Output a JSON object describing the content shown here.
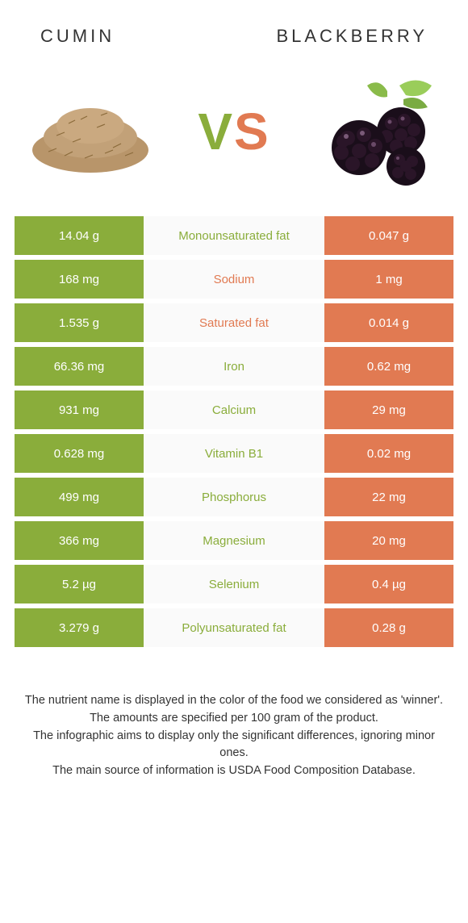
{
  "colors": {
    "left_bg": "#8aad3b",
    "right_bg": "#e17a52",
    "mid_bg": "#fafafa",
    "left_text": "#8aad3b",
    "right_text": "#e17a52"
  },
  "header": {
    "left": "CUMIN",
    "right": "BLACKBERRY"
  },
  "vs": {
    "v": "V",
    "s": "S"
  },
  "rows": [
    {
      "left": "14.04 g",
      "mid": "Monounsaturated fat",
      "right": "0.047 g",
      "winner": "left"
    },
    {
      "left": "168 mg",
      "mid": "Sodium",
      "right": "1 mg",
      "winner": "right"
    },
    {
      "left": "1.535 g",
      "mid": "Saturated fat",
      "right": "0.014 g",
      "winner": "right"
    },
    {
      "left": "66.36 mg",
      "mid": "Iron",
      "right": "0.62 mg",
      "winner": "left"
    },
    {
      "left": "931 mg",
      "mid": "Calcium",
      "right": "29 mg",
      "winner": "left"
    },
    {
      "left": "0.628 mg",
      "mid": "Vitamin B1",
      "right": "0.02 mg",
      "winner": "left"
    },
    {
      "left": "499 mg",
      "mid": "Phosphorus",
      "right": "22 mg",
      "winner": "left"
    },
    {
      "left": "366 mg",
      "mid": "Magnesium",
      "right": "20 mg",
      "winner": "left"
    },
    {
      "left": "5.2 µg",
      "mid": "Selenium",
      "right": "0.4 µg",
      "winner": "left"
    },
    {
      "left": "3.279 g",
      "mid": "Polyunsaturated fat",
      "right": "0.28 g",
      "winner": "left"
    }
  ],
  "footer": {
    "line1": "The nutrient name is displayed in the color of the food we considered as 'winner'.",
    "line2": "The amounts are specified per 100 gram of the product.",
    "line3": "The infographic aims to display only the significant differences, ignoring minor ones.",
    "line4": "The main source of information is USDA Food Composition Database."
  }
}
